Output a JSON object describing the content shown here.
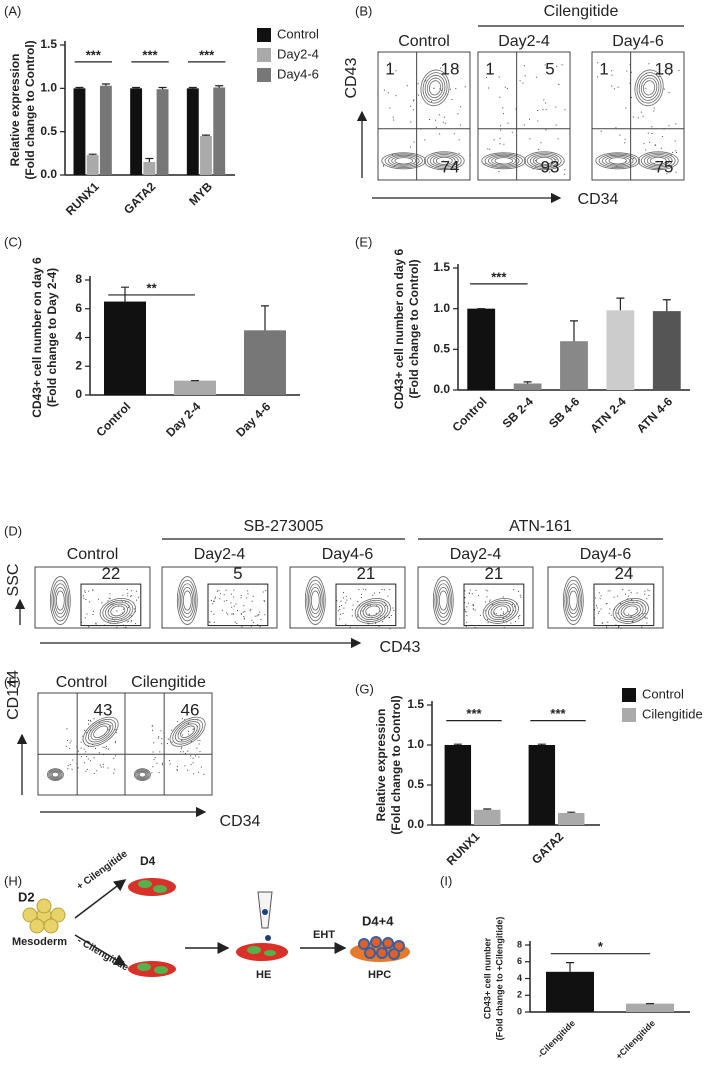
{
  "panel_labels": [
    "(A)",
    "(B)",
    "(C)",
    "(D)",
    "(E)",
    "(F)",
    "(G)",
    "(H)",
    "(I)"
  ],
  "chart_data": [
    {
      "type": "bar",
      "categories": [
        "RUNX1",
        "GATA2",
        "MYB"
      ],
      "ylabel": [
        "Relative expression",
        "(Fold change to Control)"
      ],
      "series": [
        {
          "name": "Control",
          "color": "#111111",
          "values": [
            1.0,
            1.0,
            1.0
          ],
          "errors": [
            0.01,
            0.01,
            0.01
          ]
        },
        {
          "name": "Day2-4",
          "color": "#aaaaaa",
          "values": [
            0.23,
            0.15,
            0.45
          ],
          "errors": [
            0.01,
            0.04,
            0.01
          ]
        },
        {
          "name": "Day4-6",
          "color": "#777777",
          "values": [
            1.03,
            0.99,
            1.01
          ],
          "errors": [
            0.02,
            0.02,
            0.02
          ]
        }
      ],
      "ylim": [
        0,
        1.5
      ],
      "yticks": [
        {
          "value": 0,
          "label": "0.0"
        },
        0.5,
        {
          "value": 1,
          "label": "1.0"
        },
        1.5
      ],
      "significance": [
        "***",
        "***",
        "***"
      ],
      "legend": "right"
    },
    {
      "type": "bar",
      "categories": [
        "Control",
        "Day 2-4",
        "Day 4-6"
      ],
      "ylabel": [
        "CD43+ cell number on day 6",
        "(Fold change to Day 2-4)"
      ],
      "values": [
        6.5,
        1.0,
        4.5
      ],
      "errors": [
        1.0,
        0,
        1.7
      ],
      "colors": [
        "#111111",
        "#aaaaaa",
        "#777777"
      ],
      "ylim": [
        0,
        8
      ],
      "yticks": [
        0,
        2,
        4,
        6,
        8
      ],
      "significance": [
        "**"
      ]
    },
    {
      "type": "bar",
      "categories": [
        "Control",
        "SB 2-4",
        "SB 4-6",
        "ATN 2-4",
        "ATN 4-6"
      ],
      "ylabel": [
        "CD43+ cell number on day 6",
        "(Fold change to Control)"
      ],
      "values": [
        1.0,
        0.08,
        0.6,
        0.98,
        0.97
      ],
      "errors": [
        0,
        0.02,
        0.25,
        0.15,
        0.14
      ],
      "colors": [
        "#111111",
        "#888888",
        "#888888",
        "#cccccc",
        "#555555"
      ],
      "ylim": [
        0,
        1.5
      ],
      "yticks": [
        {
          "value": 0,
          "label": "0.0"
        },
        0.5,
        {
          "value": 1,
          "label": "1.0"
        },
        1.5
      ],
      "significance": [
        "***"
      ]
    },
    {
      "type": "bar",
      "categories": [
        "RUNX1",
        "GATA2"
      ],
      "ylabel": [
        "Relative expression",
        "(Fold change to Control)"
      ],
      "series": [
        {
          "name": "Control",
          "color": "#111111",
          "values": [
            1.0,
            1.0
          ],
          "errors": [
            0.01,
            0.01
          ]
        },
        {
          "name": "Cilengitide",
          "color": "#aaaaaa",
          "values": [
            0.19,
            0.15
          ],
          "errors": [
            0.01,
            0.01
          ]
        }
      ],
      "ylim": [
        0,
        1.5
      ],
      "yticks": [
        {
          "value": 0,
          "label": "0.0"
        },
        0.5,
        {
          "value": 1,
          "label": "1.0"
        },
        1.5
      ],
      "significance": [
        "***",
        "***"
      ],
      "legend": "right"
    },
    {
      "type": "bar",
      "categories": [
        "-Cilengitide",
        "+Cilengitide"
      ],
      "ylabel": [
        "CD43+ cell number",
        "(Fold change to +Cilengitide)"
      ],
      "values": [
        4.8,
        1.0
      ],
      "errors": [
        1.1,
        0
      ],
      "colors": [
        "#111111",
        "#aaaaaa"
      ],
      "ylim": [
        0,
        8
      ],
      "yticks": [
        0,
        2,
        4,
        6,
        8
      ],
      "significance": [
        "*"
      ]
    }
  ],
  "flow_panels": [
    {
      "x_label": "CD34",
      "y_label": "CD43",
      "group_labels": [
        "Cilengitide"
      ],
      "plots": [
        {
          "title": "Control",
          "values": [
            1,
            18,
            74
          ]
        },
        {
          "title": "Day2-4",
          "values": [
            1,
            5,
            93
          ]
        },
        {
          "title": "Day4-6",
          "values": [
            1,
            18,
            75
          ]
        }
      ]
    },
    {
      "x_label": "CD43",
      "y_label": "SSC",
      "group_labels": [
        "SB-273005",
        "ATN-161"
      ],
      "plots": [
        {
          "title": "Control",
          "values": [
            22
          ]
        },
        {
          "title": "Day2-4",
          "values": [
            5
          ]
        },
        {
          "title": "Day4-6",
          "values": [
            21
          ]
        },
        {
          "title": "Day2-4",
          "values": [
            21
          ]
        },
        {
          "title": "Day4-6",
          "values": [
            24
          ]
        }
      ]
    },
    {
      "x_label": "CD34",
      "y_label": "CD144",
      "plots": [
        {
          "title": "Control",
          "values": [
            43
          ]
        },
        {
          "title": "Cilengitide",
          "values": [
            46
          ]
        }
      ]
    }
  ],
  "diagram": {
    "start": "D2",
    "start_cell": "Mesoderm",
    "plus": "+ Cilengitide",
    "minus": "- Cilengitide",
    "d4": "D4",
    "he": "HE",
    "eht": "EHT",
    "end": "D4+4",
    "end_cell": "HPC"
  }
}
